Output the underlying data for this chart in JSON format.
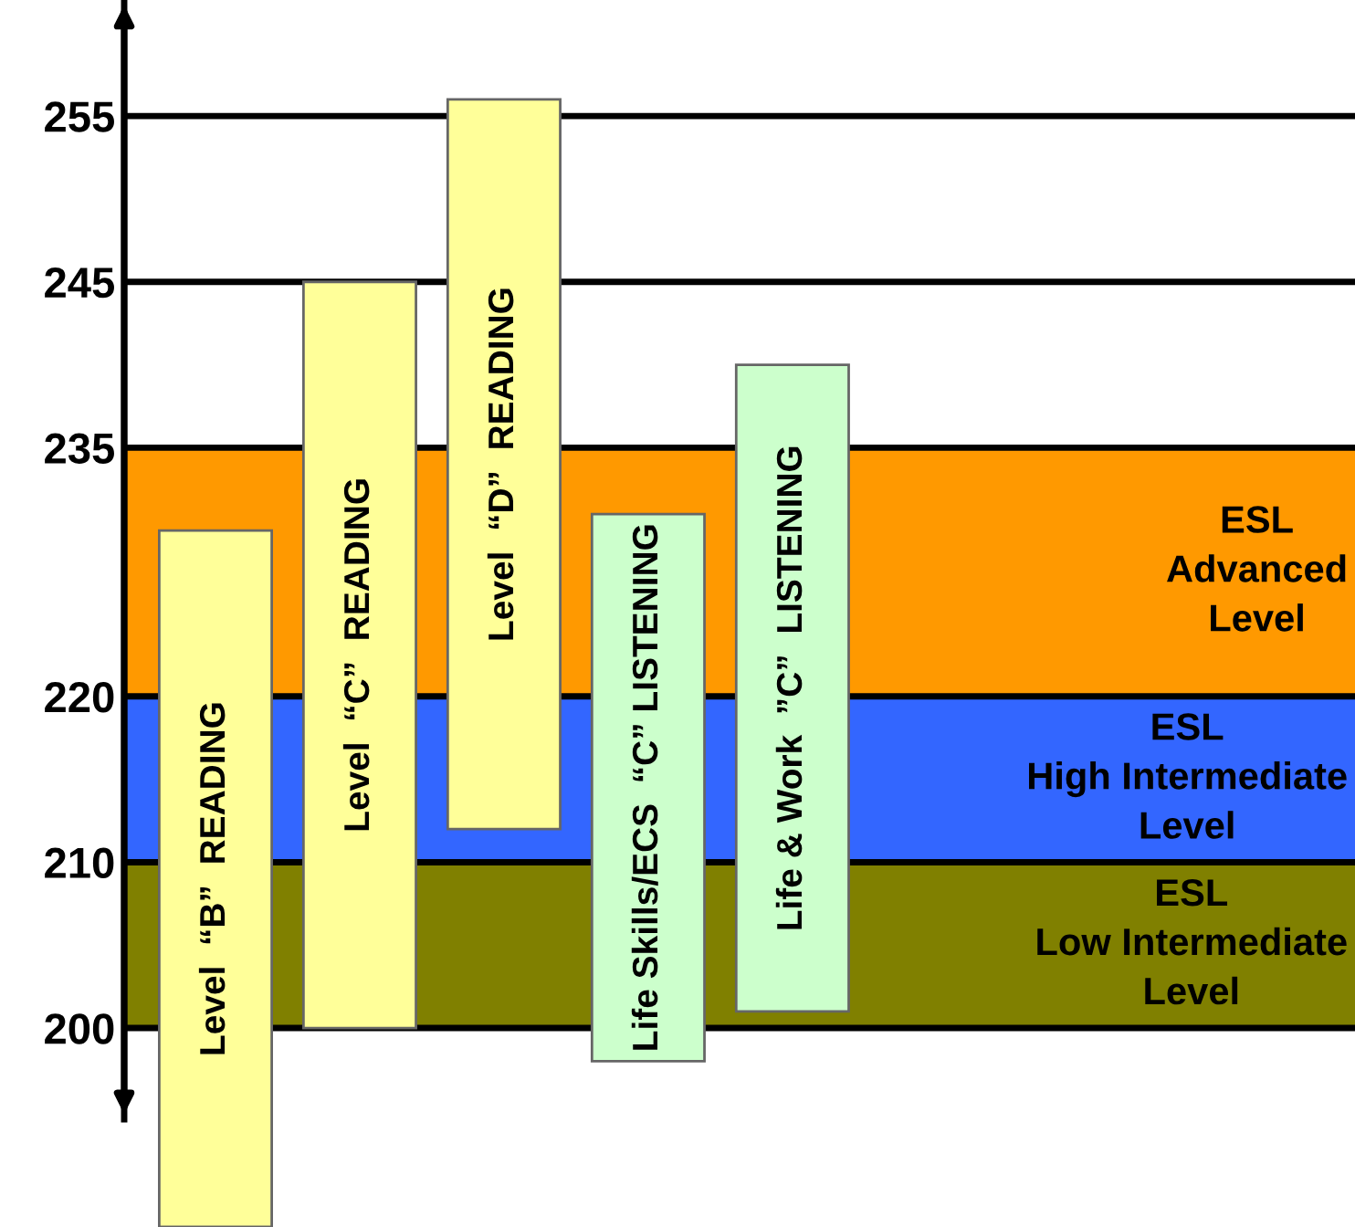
{
  "chart_data": {
    "type": "bar",
    "categories": [
      "Level  “B”  READING",
      "Level  “C”  READING",
      "Level  “D”  READING",
      "Life Skills/ECS  “C” LISTENING",
      "Life & Work  ”C”  LISTENING"
    ],
    "base": [
      188,
      200,
      212,
      198,
      201
    ],
    "values": [
      42,
      45,
      44,
      33,
      39
    ],
    "colors": [
      "#ffff99",
      "#ffff99",
      "#ffff99",
      "#ccffcc",
      "#ccffcc"
    ],
    "ylim": [
      188,
      262
    ],
    "yticks": [
      200,
      210,
      220,
      235,
      245,
      255
    ],
    "grid": "y",
    "bands": [
      {
        "axis": "y",
        "from": 200,
        "to": 210,
        "label": "ESL\nLow Intermediate\nLevel",
        "color": "#808000"
      },
      {
        "axis": "y",
        "from": 210,
        "to": 220,
        "label": "ESL\nHigh Intermediate\nLevel",
        "color": "#3366ff"
      },
      {
        "axis": "y",
        "from": 220,
        "to": 235,
        "label": "ESL\nAdvanced\nLevel",
        "color": "#ff9900"
      }
    ],
    "tick_labels": "y"
  }
}
